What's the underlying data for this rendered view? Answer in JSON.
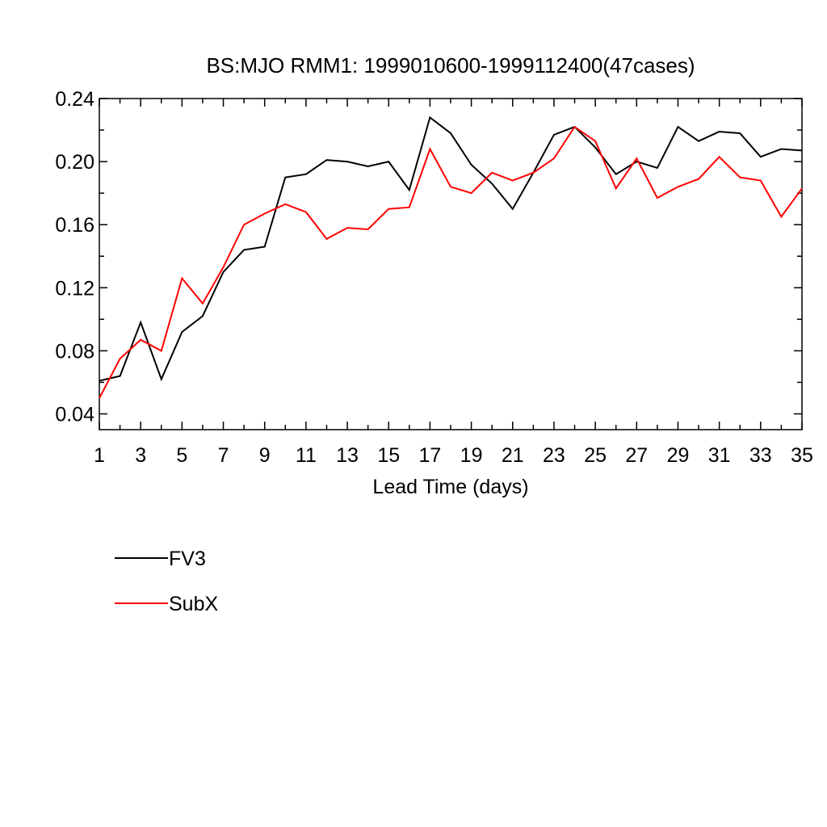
{
  "chart_data": {
    "type": "line",
    "title": "BS:MJO RMM1: 1999010600-1999112400(47cases)",
    "xlabel": "Lead Time (days)",
    "ylabel": "",
    "xlim": [
      1,
      35
    ],
    "ylim": [
      0.03,
      0.24
    ],
    "x_ticks": [
      "1",
      "3",
      "5",
      "7",
      "9",
      "11",
      "13",
      "15",
      "17",
      "19",
      "21",
      "23",
      "25",
      "27",
      "29",
      "31",
      "33",
      "35"
    ],
    "y_ticks": [
      "0.04",
      "0.08",
      "0.12",
      "0.16",
      "0.20",
      "0.24"
    ],
    "x": [
      1,
      2,
      3,
      4,
      5,
      6,
      7,
      8,
      9,
      10,
      11,
      12,
      13,
      14,
      15,
      16,
      17,
      18,
      19,
      20,
      21,
      22,
      23,
      24,
      25,
      26,
      27,
      28,
      29,
      30,
      31,
      32,
      33,
      34,
      35
    ],
    "series": [
      {
        "name": "FV3",
        "color": "#000000",
        "values": [
          0.061,
          0.064,
          0.098,
          0.062,
          0.092,
          0.102,
          0.13,
          0.144,
          0.146,
          0.19,
          0.192,
          0.201,
          0.2,
          0.197,
          0.2,
          0.182,
          0.228,
          0.218,
          0.198,
          0.186,
          0.17,
          0.193,
          0.217,
          0.222,
          0.209,
          0.192,
          0.2,
          0.196,
          0.222,
          0.213,
          0.219,
          0.218,
          0.203,
          0.208,
          0.207
        ]
      },
      {
        "name": "SubX",
        "color": "#ff0000",
        "values": [
          0.05,
          0.075,
          0.087,
          0.08,
          0.126,
          0.11,
          0.133,
          0.16,
          0.167,
          0.173,
          0.168,
          0.151,
          0.158,
          0.157,
          0.17,
          0.171,
          0.208,
          0.184,
          0.18,
          0.193,
          0.188,
          0.193,
          0.202,
          0.222,
          0.213,
          0.183,
          0.202,
          0.177,
          0.184,
          0.189,
          0.203,
          0.19,
          0.188,
          0.165,
          0.183
        ]
      }
    ],
    "grid": false,
    "legend_position": "bottom-left"
  }
}
